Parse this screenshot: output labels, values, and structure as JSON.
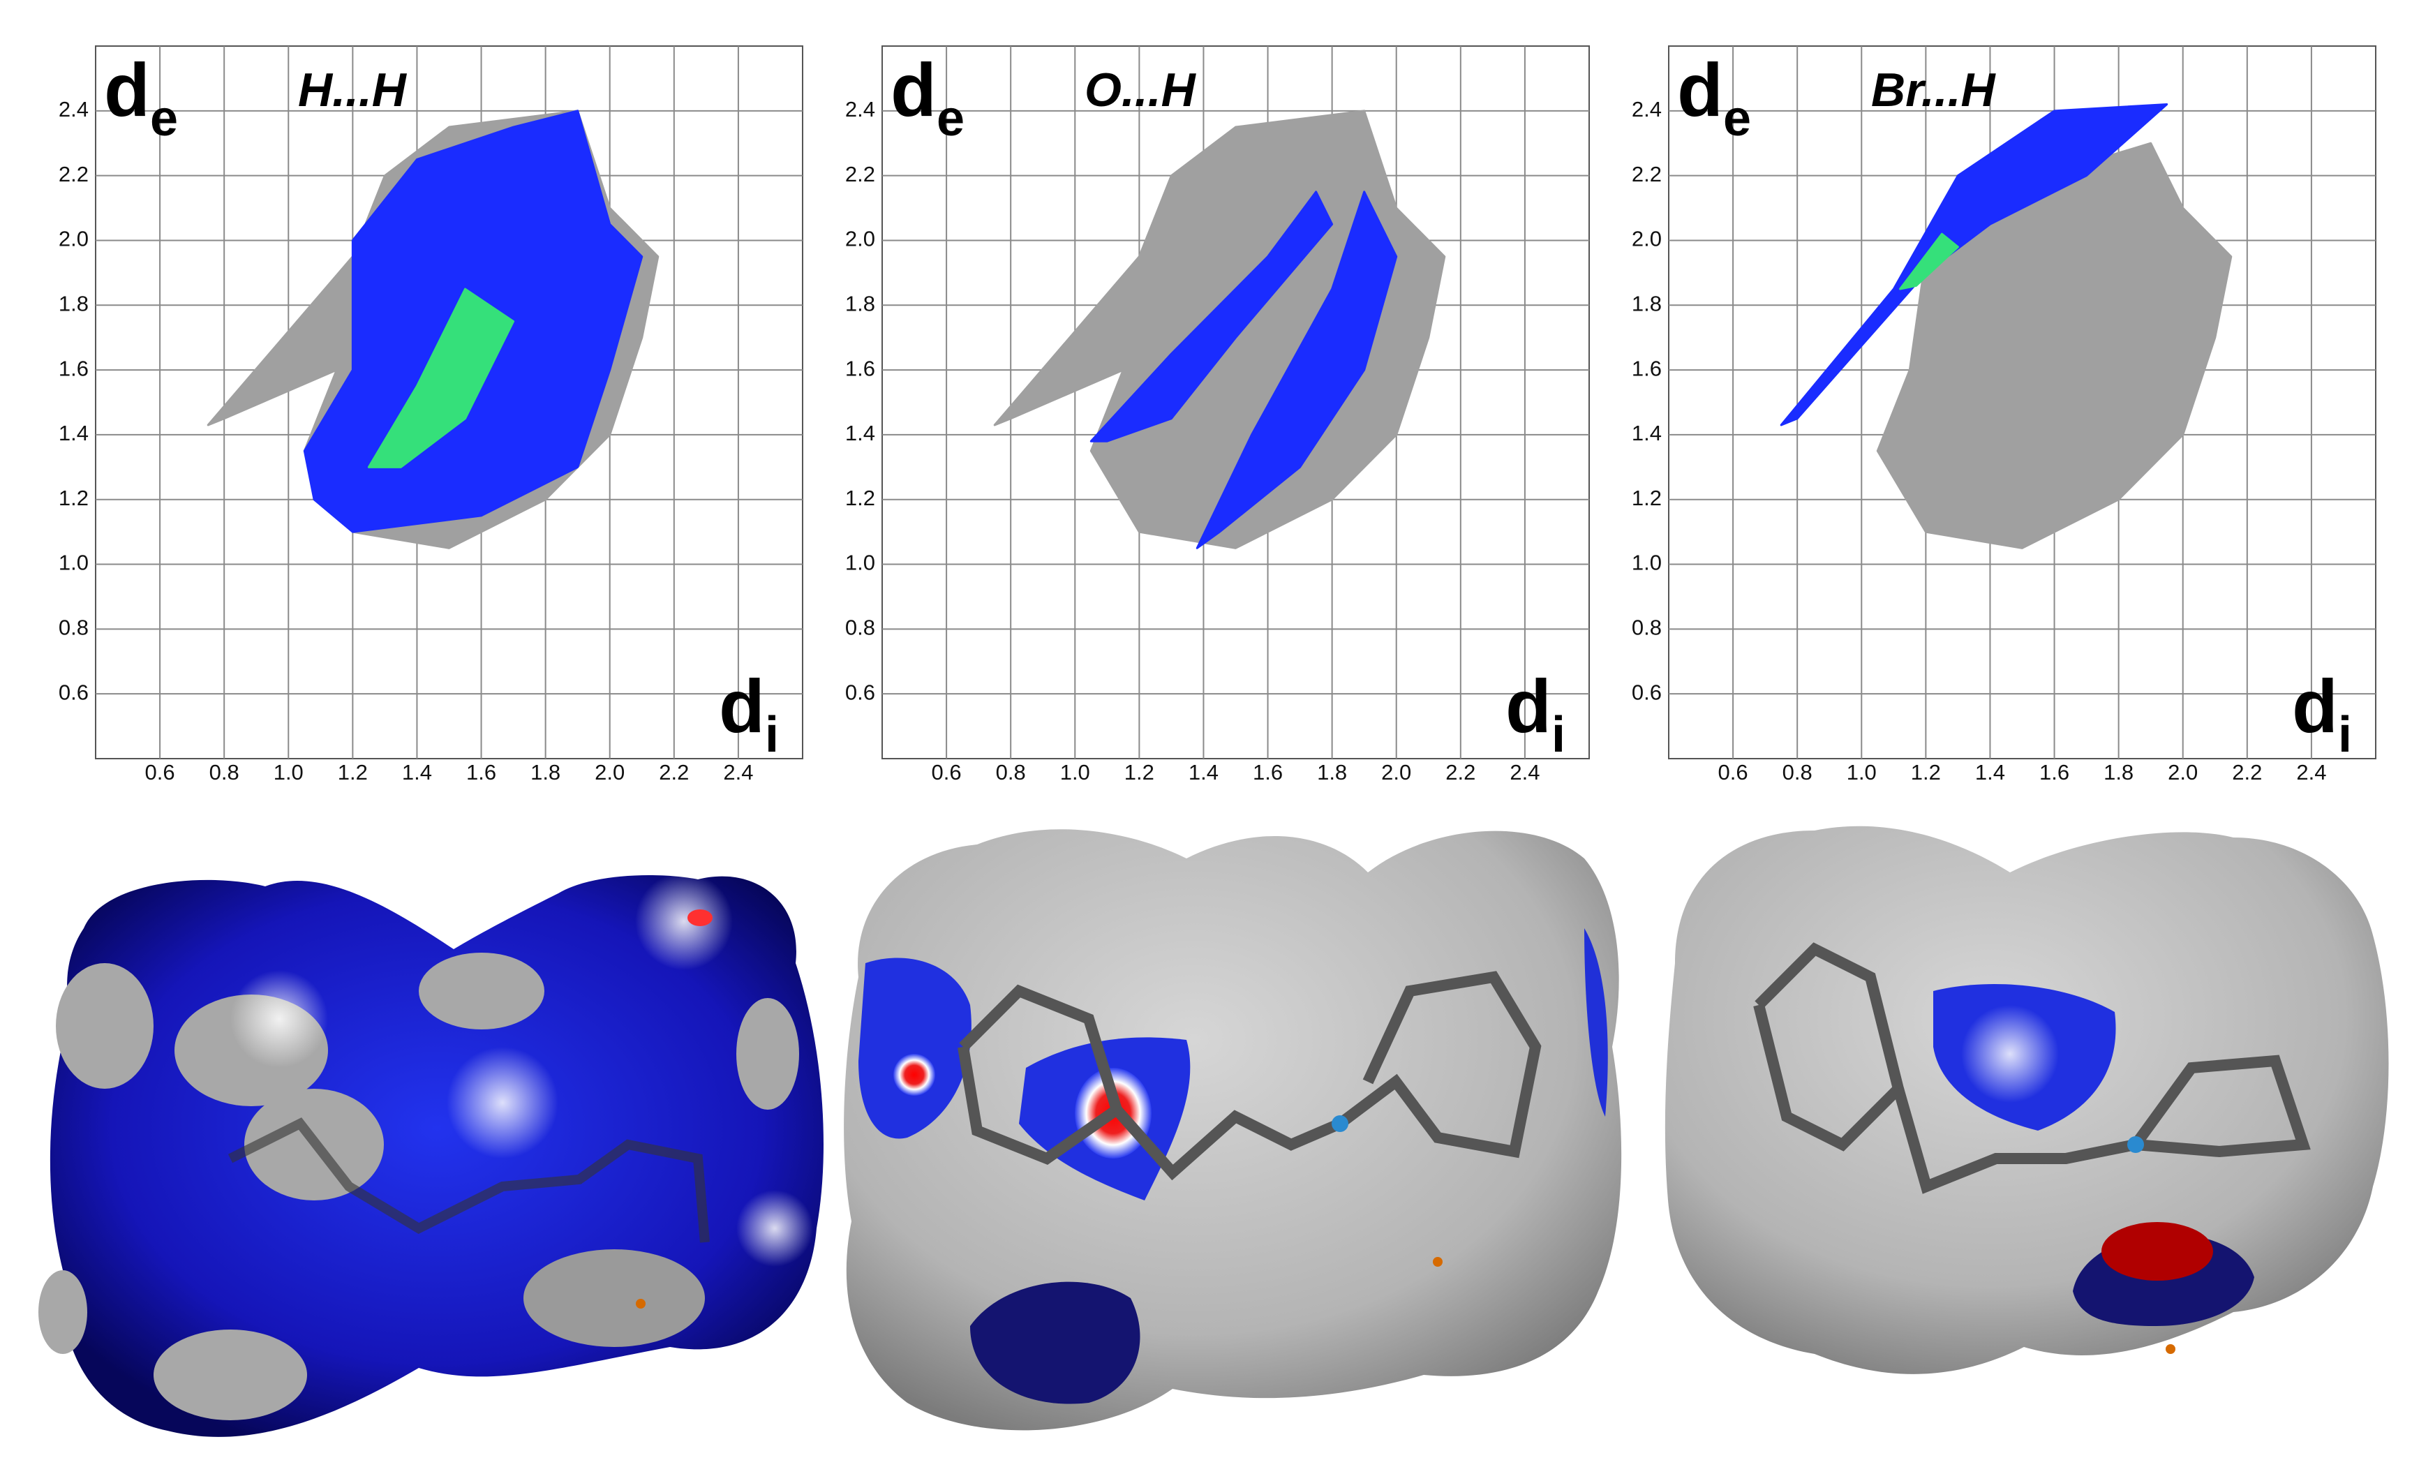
{
  "chart_data": [
    {
      "type": "fingerprint",
      "title": "H...H",
      "ylabel": "d",
      "ylabel_sub": "e",
      "xlabel": "d",
      "xlabel_sub": "i",
      "xlim": [
        0.4,
        2.6
      ],
      "ylim": [
        0.4,
        2.6
      ],
      "xticks": [
        0.6,
        0.8,
        {
          "value": 1,
          "label": "1.0"
        },
        1.2,
        1.4,
        1.6,
        1.8,
        {
          "value": 2,
          "label": "2.0"
        },
        2.2,
        2.4
      ],
      "yticks": [
        0.6,
        0.8,
        {
          "value": 1,
          "label": "1.0"
        },
        1.2,
        1.4,
        1.6,
        1.8,
        {
          "value": 2,
          "label": "2.0"
        },
        2.2,
        2.4
      ],
      "grid": true,
      "series": [
        {
          "color": "#a0a0a0",
          "x": [
            0.75,
            1.2,
            1.3,
            1.5,
            1.9,
            2.0,
            2.15,
            2.1,
            2.0,
            1.8,
            1.5,
            1.2,
            1.05,
            1.15,
            0.8
          ],
          "y": [
            1.43,
            1.95,
            2.2,
            2.35,
            2.4,
            2.1,
            1.95,
            1.7,
            1.4,
            1.2,
            1.05,
            1.1,
            1.35,
            1.6,
            1.45
          ]
        },
        {
          "color": "#1a2cff",
          "x": [
            1.05,
            1.2,
            1.2,
            1.4,
            1.7,
            1.9,
            2.0,
            2.1,
            2.0,
            1.9,
            1.6,
            1.2,
            1.08
          ],
          "y": [
            1.35,
            1.6,
            2.0,
            2.25,
            2.35,
            2.4,
            2.05,
            1.95,
            1.6,
            1.3,
            1.15,
            1.1,
            1.2
          ]
        },
        {
          "color": "#35e07a",
          "x": [
            1.25,
            1.4,
            1.55,
            1.7,
            1.55,
            1.35
          ],
          "y": [
            1.3,
            1.55,
            1.85,
            1.75,
            1.45,
            1.3
          ]
        }
      ]
    },
    {
      "type": "fingerprint",
      "title": "O...H",
      "ylabel": "d",
      "ylabel_sub": "e",
      "xlabel": "d",
      "xlabel_sub": "i",
      "xlim": [
        0.4,
        2.6
      ],
      "ylim": [
        0.4,
        2.6
      ],
      "xticks": [
        0.6,
        0.8,
        {
          "value": 1,
          "label": "1.0"
        },
        1.2,
        1.4,
        1.6,
        1.8,
        {
          "value": 2,
          "label": "2.0"
        },
        2.2,
        2.4
      ],
      "yticks": [
        0.6,
        0.8,
        {
          "value": 1,
          "label": "1.0"
        },
        1.2,
        1.4,
        1.6,
        1.8,
        {
          "value": 2,
          "label": "2.0"
        },
        2.2,
        2.4
      ],
      "grid": true,
      "series": [
        {
          "color": "#a0a0a0",
          "x": [
            0.75,
            1.2,
            1.3,
            1.5,
            1.9,
            2.0,
            2.15,
            2.1,
            2.0,
            1.8,
            1.5,
            1.2,
            1.05,
            1.15,
            0.8
          ],
          "y": [
            1.43,
            1.95,
            2.2,
            2.35,
            2.4,
            2.1,
            1.95,
            1.7,
            1.4,
            1.2,
            1.05,
            1.1,
            1.35,
            1.6,
            1.45
          ]
        },
        {
          "color": "#1a2cff",
          "x": [
            1.05,
            1.3,
            1.6,
            1.75,
            1.8,
            1.5,
            1.3,
            1.1
          ],
          "y": [
            1.38,
            1.65,
            1.95,
            2.15,
            2.05,
            1.7,
            1.45,
            1.38
          ]
        },
        {
          "color": "#1a2cff",
          "x": [
            1.38,
            1.55,
            1.8,
            1.9,
            2.0,
            1.9,
            1.7,
            1.45
          ],
          "y": [
            1.05,
            1.4,
            1.85,
            2.15,
            1.95,
            1.6,
            1.3,
            1.1
          ]
        }
      ]
    },
    {
      "type": "fingerprint",
      "title": "Br...H",
      "ylabel": "d",
      "ylabel_sub": "e",
      "xlabel": "d",
      "xlabel_sub": "i",
      "xlim": [
        0.4,
        2.6
      ],
      "ylim": [
        0.4,
        2.6
      ],
      "xticks": [
        0.6,
        0.8,
        {
          "value": 1,
          "label": "1.0"
        },
        1.2,
        1.4,
        1.6,
        1.8,
        {
          "value": 2,
          "label": "2.0"
        },
        2.2,
        2.4
      ],
      "yticks": [
        0.6,
        0.8,
        {
          "value": 1,
          "label": "1.0"
        },
        1.2,
        1.4,
        1.6,
        1.8,
        {
          "value": 2,
          "label": "2.0"
        },
        2.2,
        2.4
      ],
      "grid": true,
      "series": [
        {
          "color": "#a0a0a0",
          "x": [
            1.2,
            1.4,
            1.9,
            2.0,
            2.15,
            2.1,
            2.0,
            1.8,
            1.5,
            1.2,
            1.05,
            1.15
          ],
          "y": [
            1.95,
            2.15,
            2.3,
            2.1,
            1.95,
            1.7,
            1.4,
            1.2,
            1.05,
            1.1,
            1.35,
            1.6
          ]
        },
        {
          "color": "#1a2cff",
          "x": [
            0.75,
            1.1,
            1.3,
            1.6,
            1.95,
            1.7,
            1.4,
            1.2,
            0.8
          ],
          "y": [
            1.43,
            1.85,
            2.2,
            2.4,
            2.42,
            2.2,
            2.05,
            1.9,
            1.45
          ]
        },
        {
          "color": "#35e07a",
          "x": [
            1.12,
            1.25,
            1.3,
            1.17
          ],
          "y": [
            1.85,
            2.02,
            1.98,
            1.86
          ]
        }
      ]
    }
  ]
}
